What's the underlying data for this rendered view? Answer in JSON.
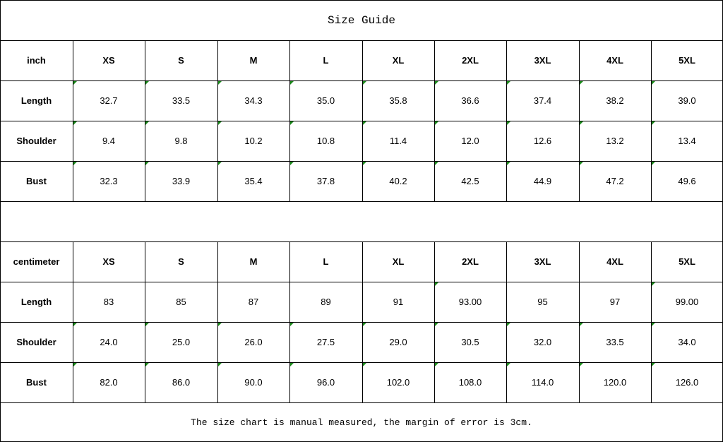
{
  "title": "Size Guide",
  "sizes": [
    "XS",
    "S",
    "M",
    "L",
    "XL",
    "2XL",
    "3XL",
    "4XL",
    "5XL"
  ],
  "tables": [
    {
      "unit": "inch",
      "rows": [
        {
          "label": "Length",
          "values": [
            "32.7",
            "33.5",
            "34.3",
            "35.0",
            "35.8",
            "36.6",
            "37.4",
            "38.2",
            "39.0"
          ]
        },
        {
          "label": "Shoulder",
          "values": [
            "9.4",
            "9.8",
            "10.2",
            "10.8",
            "11.4",
            "12.0",
            "12.6",
            "13.2",
            "13.4"
          ]
        },
        {
          "label": "Bust",
          "values": [
            "32.3",
            "33.9",
            "35.4",
            "37.8",
            "40.2",
            "42.5",
            "44.9",
            "47.2",
            "49.6"
          ]
        }
      ]
    },
    {
      "unit": "centimeter",
      "rows": [
        {
          "label": "Length",
          "values": [
            "83",
            "85",
            "87",
            "89",
            "91",
            "93.00",
            "95",
            "97",
            "99.00"
          ]
        },
        {
          "label": "Shoulder",
          "values": [
            "24.0",
            "25.0",
            "26.0",
            "27.5",
            "29.0",
            "30.5",
            "32.0",
            "33.5",
            "34.0"
          ]
        },
        {
          "label": "Bust",
          "values": [
            "82.0",
            "86.0",
            "90.0",
            "96.0",
            "102.0",
            "108.0",
            "114.0",
            "120.0",
            "126.0"
          ]
        }
      ]
    }
  ],
  "note": "The size chart is manual measured, the margin of error is 3cm.",
  "colors": {
    "grid": "#000000",
    "text_flag": "#1a8a1a"
  }
}
